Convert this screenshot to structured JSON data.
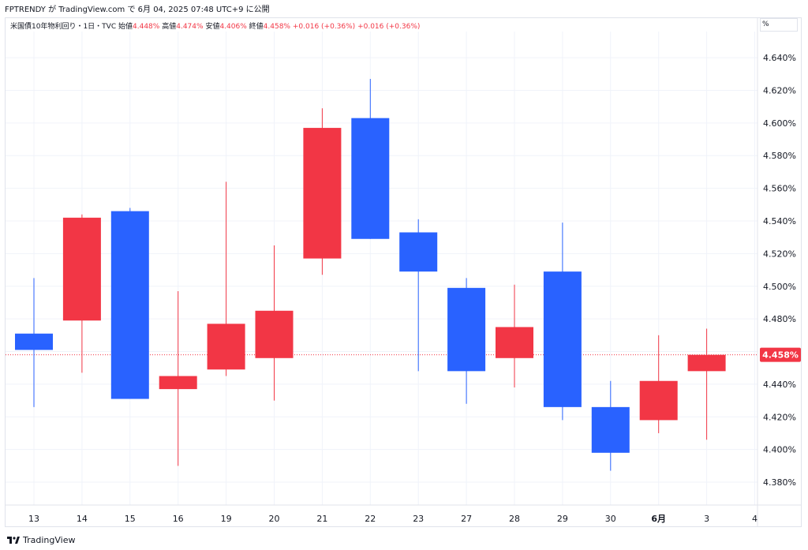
{
  "caption": "FPTRENDY が TradingView.com で 6月 04, 2025 07:48 UTC+9 に公開",
  "legend": {
    "symbol": "米国債10年物利回り・1日・TVC",
    "open_label": "始値",
    "open": "4.448%",
    "high_label": "高値",
    "high": "4.474%",
    "low_label": "安値",
    "low": "4.406%",
    "close_label": "終値",
    "close": "4.458%",
    "change_1": "+0.016 (+0.36%)",
    "change_2": "+0.016 (+0.36%)"
  },
  "unit": "%",
  "price_tag": "4.458%",
  "footer": {
    "brand": "TradingView"
  },
  "colors": {
    "up": "#f23645",
    "down": "#2962ff",
    "grid": "#f0f3fa",
    "last_line": "#f23645"
  },
  "chart_data": {
    "type": "candlestick",
    "x_labels": [
      "13",
      "14",
      "15",
      "16",
      "19",
      "20",
      "21",
      "22",
      "23",
      "27",
      "28",
      "29",
      "30",
      "6月",
      "3",
      "4"
    ],
    "x_label_bold": "6月",
    "y_ticks": [
      "4.380%",
      "4.400%",
      "4.420%",
      "4.440%",
      "4.460%",
      "4.480%",
      "4.500%",
      "4.520%",
      "4.540%",
      "4.560%",
      "4.580%",
      "4.600%",
      "4.620%",
      "4.640%"
    ],
    "ylim": [
      4.366,
      4.656
    ],
    "last_value": 4.458,
    "candles": [
      {
        "x": "13",
        "open": 4.471,
        "high": 4.505,
        "low": 4.426,
        "close": 4.461
      },
      {
        "x": "14",
        "open": 4.479,
        "high": 4.544,
        "low": 4.447,
        "close": 4.542
      },
      {
        "x": "15",
        "open": 4.546,
        "high": 4.548,
        "low": 4.431,
        "close": 4.431
      },
      {
        "x": "16",
        "open": 4.437,
        "high": 4.497,
        "low": 4.39,
        "close": 4.445
      },
      {
        "x": "19",
        "open": 4.449,
        "high": 4.564,
        "low": 4.445,
        "close": 4.477
      },
      {
        "x": "20",
        "open": 4.456,
        "high": 4.525,
        "low": 4.43,
        "close": 4.485
      },
      {
        "x": "21",
        "open": 4.517,
        "high": 4.609,
        "low": 4.507,
        "close": 4.597
      },
      {
        "x": "22",
        "open": 4.603,
        "high": 4.627,
        "low": 4.529,
        "close": 4.529
      },
      {
        "x": "23",
        "open": 4.533,
        "high": 4.541,
        "low": 4.448,
        "close": 4.509
      },
      {
        "x": "27",
        "open": 4.499,
        "high": 4.505,
        "low": 4.428,
        "close": 4.448
      },
      {
        "x": "28",
        "open": 4.456,
        "high": 4.501,
        "low": 4.438,
        "close": 4.475
      },
      {
        "x": "29",
        "open": 4.509,
        "high": 4.539,
        "low": 4.418,
        "close": 4.426
      },
      {
        "x": "30",
        "open": 4.426,
        "high": 4.442,
        "low": 4.387,
        "close": 4.398
      },
      {
        "x": "6月",
        "open": 4.418,
        "high": 4.47,
        "low": 4.41,
        "close": 4.442
      },
      {
        "x": "3",
        "open": 4.448,
        "high": 4.474,
        "low": 4.406,
        "close": 4.458
      }
    ]
  }
}
